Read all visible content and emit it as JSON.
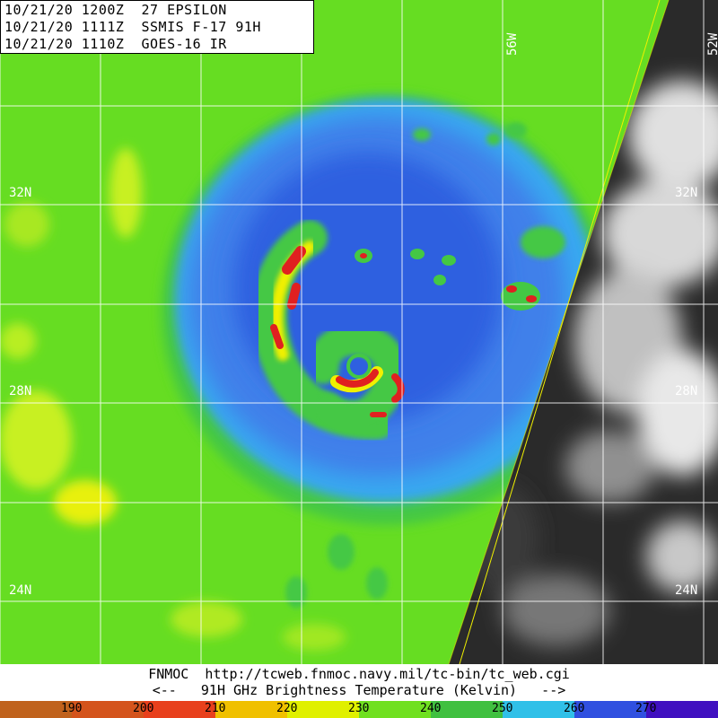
{
  "header": {
    "line1": "10/21/20 1200Z  27 EPSILON",
    "line2": "10/21/20 1111Z  SSMIS F-17 91H",
    "line3": "10/21/20 1110Z  GOES-16 IR"
  },
  "lat_labels": [
    "32N",
    "28N",
    "24N"
  ],
  "lon_labels": [
    "56W",
    "52W"
  ],
  "footer": {
    "line1": "FNMOC  http://tcweb.fnmoc.navy.mil/tc-bin/tc_web.cgi",
    "line2": "<--   91H GHz Brightness Temperature (Kelvin)   -->"
  },
  "colorbar": {
    "labels": [
      "190",
      "200",
      "210",
      "220",
      "230",
      "240",
      "250",
      "260",
      "270"
    ],
    "colors": [
      "#c0621c",
      "#d4541c",
      "#e8401c",
      "#f0c000",
      "#e0f000",
      "#70e020",
      "#40c040",
      "#30c0e8",
      "#3050e0",
      "#4010c0"
    ]
  },
  "imagery": {
    "microwave_colors": {
      "background": "#66dd22",
      "cold_blue": "#2f66e8",
      "light_blue": "#38a8f0",
      "green_band": "#44c844",
      "yellow": "#f0f000",
      "red": "#e02020"
    },
    "ir_colors": {
      "dark": "#2a2a2a",
      "medium": "#555555",
      "bright": "#e0e0e0"
    }
  }
}
